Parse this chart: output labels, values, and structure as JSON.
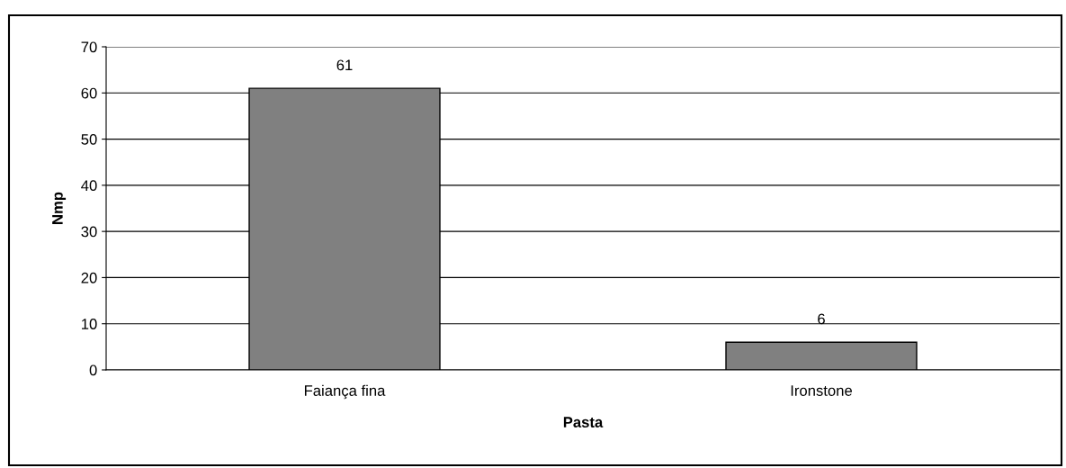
{
  "chart_data": {
    "type": "bar",
    "xlabel": "Pasta",
    "ylabel": "Nmp",
    "categories": [
      "Faiança fina",
      "Ironstone"
    ],
    "values": [
      61,
      6
    ],
    "color": "#808080",
    "ylim": [
      0,
      70
    ],
    "yticks": [
      0,
      10,
      20,
      30,
      40,
      50,
      60,
      70
    ],
    "grid": "y",
    "data_labels": true
  }
}
